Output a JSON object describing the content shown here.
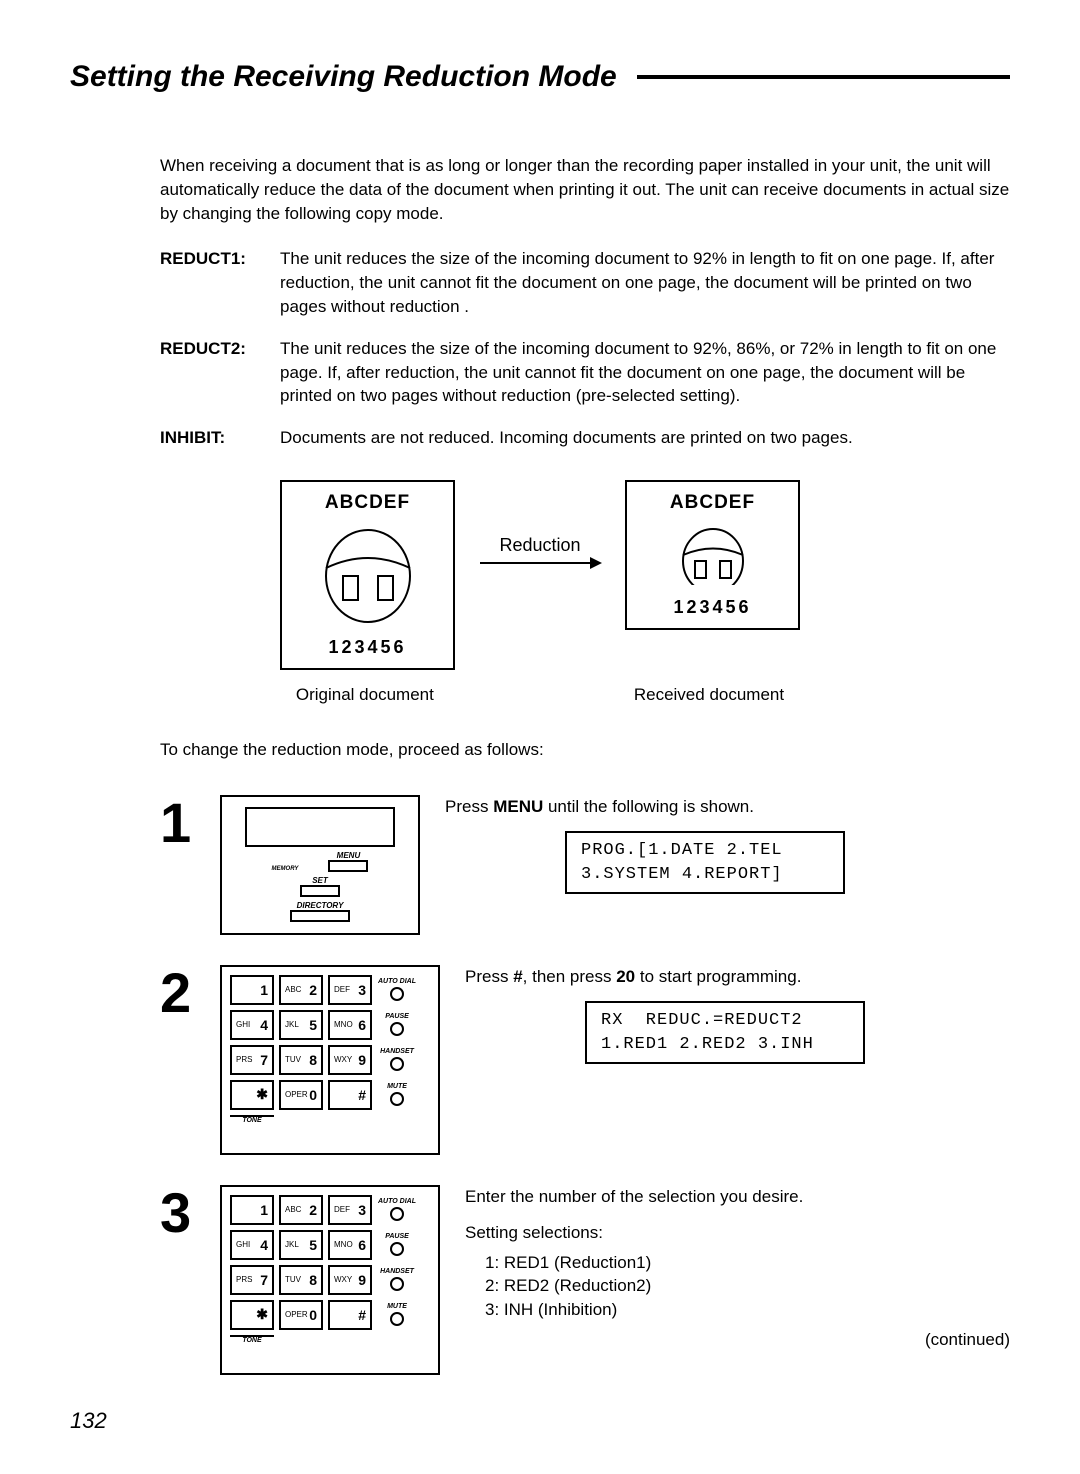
{
  "page": {
    "title": "Setting the Receiving Reduction Mode",
    "intro": "When receiving a document that is as long or longer than the recording paper installed in your unit, the unit will automatically reduce the data of the document when printing it out. The unit can receive documents in actual size by changing the following copy mode.",
    "page_number": "132"
  },
  "definitions": [
    {
      "term": "REDUCT1:",
      "desc": "The unit reduces the size of the incoming document to 92% in length to fit on one page. If, after reduction, the unit cannot fit the document on one page, the document will be printed on two pages without reduction ."
    },
    {
      "term": "REDUCT2:",
      "desc": "The unit reduces the size of the incoming document to 92%, 86%, or 72% in length to fit on one page. If, after reduction, the unit cannot fit the document on one page, the document will be printed on two pages without reduction (pre-selected setting)."
    },
    {
      "term": "INHIBIT:",
      "desc": "Documents are not reduced. Incoming documents are printed on two pages."
    }
  ],
  "diagram": {
    "doc_text": "ABCDEF",
    "doc_numbers": "123456",
    "arrow_label": "Reduction",
    "caption_left": "Original document",
    "caption_right": "Received document"
  },
  "proceed_text": "To change the reduction mode, proceed as follows:",
  "steps": {
    "s1": {
      "num": "1",
      "text_before": "Press ",
      "text_bold": "MENU",
      "text_after": " until the following is shown.",
      "lcd": "PROG.[1.DATE 2.TEL\n3.SYSTEM 4.REPORT]",
      "panel": {
        "menu": "MENU",
        "set": "SET",
        "directory": "DIRECTORY",
        "memory": "MEMORY"
      }
    },
    "s2": {
      "num": "2",
      "text_a": "Press ",
      "text_b": "#",
      "text_c": ", then press ",
      "text_d": "20",
      "text_e": " to start programming.",
      "lcd": "RX  REDUC.=REDUCT2\n1.RED1 2.RED2 3.INH"
    },
    "s3": {
      "num": "3",
      "text": "Enter the number of the selection you desire.",
      "settings_title": "Setting selections:",
      "settings": [
        "1:  RED1 (Reduction1)",
        "2:  RED2 (Reduction2)",
        "3:  INH (Inhibition)"
      ],
      "continued": "(continued)"
    }
  },
  "keypad": {
    "keys": [
      {
        "sub": "",
        "d": "1"
      },
      {
        "sub": "ABC",
        "d": "2"
      },
      {
        "sub": "DEF",
        "d": "3"
      },
      {
        "sub": "GHI",
        "d": "4"
      },
      {
        "sub": "JKL",
        "d": "5"
      },
      {
        "sub": "MNO",
        "d": "6"
      },
      {
        "sub": "PRS",
        "d": "7"
      },
      {
        "sub": "TUV",
        "d": "8"
      },
      {
        "sub": "WXY",
        "d": "9"
      },
      {
        "sub": "",
        "d": "✱"
      },
      {
        "sub": "OPER",
        "d": "0"
      },
      {
        "sub": "",
        "d": "#"
      }
    ],
    "side": [
      "AUTO DIAL",
      "PAUSE",
      "HANDSET",
      "MUTE"
    ],
    "tone_label": "TONE"
  },
  "colors": {
    "text": "#000000",
    "bg": "#ffffff"
  }
}
